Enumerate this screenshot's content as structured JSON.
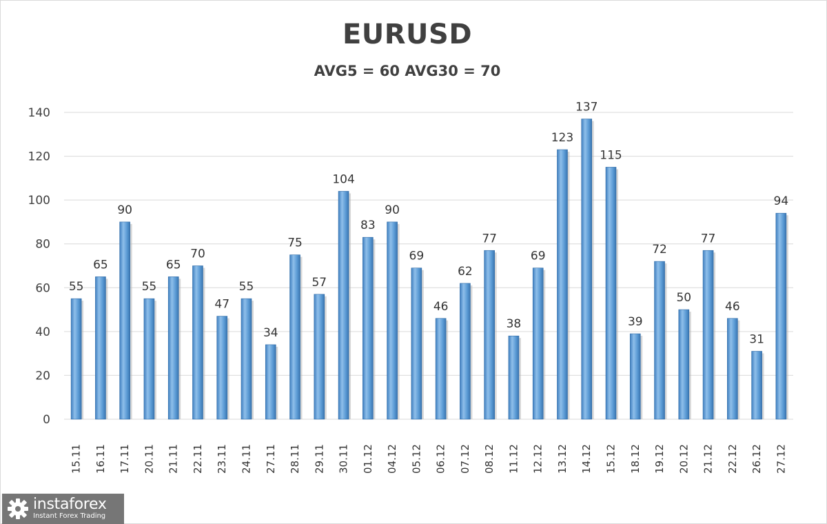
{
  "chart_data": {
    "type": "bar",
    "title": "EURUSD",
    "subtitle": "AVG5 = 60 AVG30 = 70",
    "xlabel": "",
    "ylabel": "",
    "ylim": [
      0,
      140
    ],
    "yticks": [
      0,
      20,
      40,
      60,
      80,
      100,
      120,
      140
    ],
    "grid": true,
    "bar_color": "#5b9bd5",
    "categories": [
      "15.11",
      "16.11",
      "17.11",
      "20.11",
      "21.11",
      "22.11",
      "23.11",
      "24.11",
      "27.11",
      "28.11",
      "29.11",
      "30.11",
      "01.12",
      "04.12",
      "05.12",
      "06.12",
      "07.12",
      "08.12",
      "11.12",
      "12.12",
      "13.12",
      "14.12",
      "15.12",
      "18.12",
      "19.12",
      "20.12",
      "21.12",
      "22.12",
      "26.12",
      "27.12"
    ],
    "values": [
      55,
      65,
      90,
      55,
      65,
      70,
      47,
      55,
      34,
      75,
      57,
      104,
      83,
      90,
      69,
      46,
      62,
      77,
      38,
      69,
      123,
      137,
      115,
      39,
      72,
      50,
      77,
      46,
      31,
      94
    ]
  },
  "logo": {
    "name": "instaforex",
    "tagline": "Instant Forex Trading",
    "icon": "gear-logo-icon"
  }
}
